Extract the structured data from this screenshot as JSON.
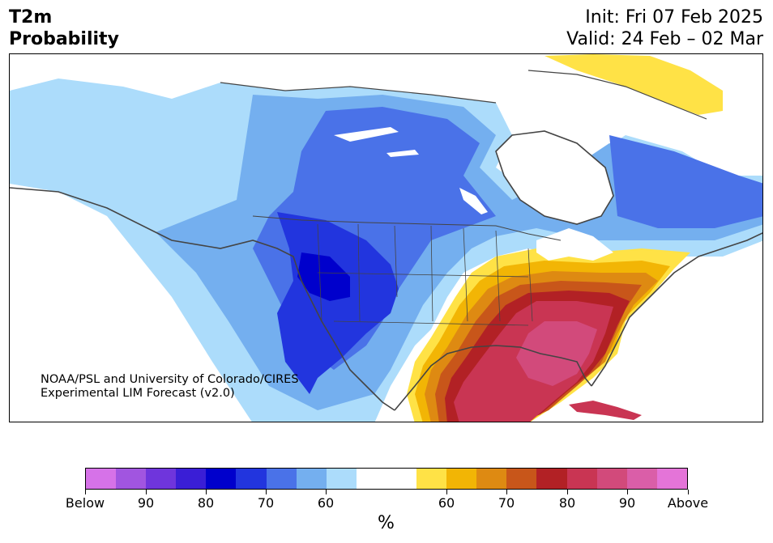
{
  "title": {
    "line1": "T2m",
    "line2": "Probability"
  },
  "init": "Init: Fri 07 Feb 2025",
  "valid": "Valid: 24 Feb – 02 Mar",
  "credit": {
    "line1": "NOAA/PSL and University of Colorado/CIRES",
    "line2": "Experimental LIM Forecast (v2.0)"
  },
  "colorbar": {
    "colors": [
      "#d672e8",
      "#a155e0",
      "#6f35dc",
      "#3a1ed6",
      "#0000cc",
      "#2235de",
      "#4a72e8",
      "#74afef",
      "#acdcfb",
      "#ffffff",
      "#ffffff",
      "#ffe246",
      "#f2b505",
      "#de8a12",
      "#c8561a",
      "#b22125",
      "#c93553",
      "#d24a7b",
      "#da5ea8",
      "#e474d8"
    ],
    "tick_labels": [
      "Below",
      "90",
      "80",
      "70",
      "60",
      "60",
      "70",
      "80",
      "90",
      "Above"
    ],
    "unit": "%"
  },
  "legend_categories": {
    "below": "cold / below-normal probability (blue–purple)",
    "above": "warm / above-normal probability (yellow–red–pink)"
  }
}
